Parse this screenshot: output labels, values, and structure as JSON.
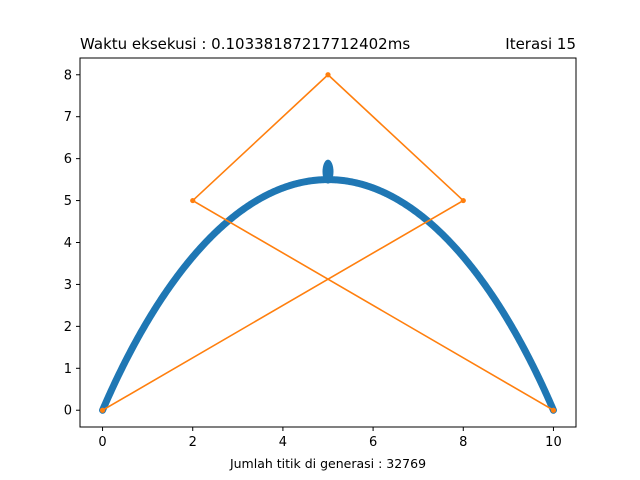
{
  "chart_data": {
    "type": "line",
    "title_left": "Waktu eksekusi : 0.10338187217712402ms",
    "title_right": "Iterasi 15",
    "xlabel": "Jumlah titik di generasi : 32769",
    "ylabel": "",
    "xlim": [
      -0.5,
      10.5
    ],
    "ylim": [
      -0.4,
      8.4
    ],
    "xticks": [
      0,
      2,
      4,
      6,
      8,
      10
    ],
    "yticks": [
      0,
      1,
      2,
      3,
      4,
      5,
      6,
      7,
      8
    ],
    "grid": false,
    "series": [
      {
        "name": "",
        "kind": "bezier-curve",
        "color": "#1f77b4",
        "control_points": [
          [
            0,
            0
          ],
          [
            2,
            5
          ],
          [
            5,
            8
          ],
          [
            8,
            5
          ],
          [
            10,
            0
          ]
        ],
        "point_count": 32769
      },
      {
        "name": "",
        "kind": "control-polygon",
        "color": "#ff7f0e",
        "x": [
          0,
          8,
          5,
          2,
          10
        ],
        "y": [
          0,
          5,
          8,
          5,
          0
        ]
      }
    ]
  }
}
